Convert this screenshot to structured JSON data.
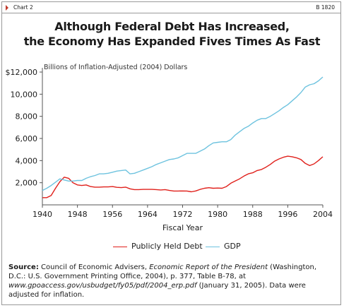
{
  "header": {
    "chart_label": "Chart 2",
    "chart_id": "B 1820"
  },
  "chart_data": {
    "type": "line",
    "title_line1": "Although Federal Debt Has Increased,",
    "title_line2": "the Economy Has Expanded Fives Times As Fast",
    "subtitle": "Billions of Inflation-Adjusted (2004) Dollars",
    "xlabel": "Fiscal Year",
    "ylabel": "",
    "xlim": [
      1940,
      2004
    ],
    "ylim": [
      0,
      12000
    ],
    "x_ticks": [
      "1940",
      "1948",
      "1956",
      "1964",
      "1972",
      "1980",
      "1988",
      "1996",
      "2004"
    ],
    "y_ticks": [
      "$12,000",
      "10,000",
      "8,000",
      "6,000",
      "4,000",
      "2,000"
    ],
    "y_tick_values": [
      12000,
      10000,
      8000,
      6000,
      4000,
      2000
    ],
    "x": [
      1940,
      1941,
      1942,
      1943,
      1944,
      1945,
      1946,
      1947,
      1948,
      1949,
      1950,
      1951,
      1952,
      1953,
      1954,
      1955,
      1956,
      1957,
      1958,
      1959,
      1960,
      1961,
      1962,
      1963,
      1964,
      1965,
      1966,
      1967,
      1968,
      1969,
      1970,
      1971,
      1972,
      1973,
      1974,
      1975,
      1976,
      1977,
      1978,
      1979,
      1980,
      1981,
      1982,
      1983,
      1984,
      1985,
      1986,
      1987,
      1988,
      1989,
      1990,
      1991,
      1992,
      1993,
      1994,
      1995,
      1996,
      1997,
      1998,
      1999,
      2000,
      2001,
      2002,
      2003,
      2004
    ],
    "series": [
      {
        "name": "Publicly Held Debt",
        "color": "#e0201b",
        "values": [
          650,
          650,
          850,
          1500,
          2100,
          2500,
          2400,
          2000,
          1800,
          1750,
          1800,
          1650,
          1600,
          1600,
          1620,
          1620,
          1650,
          1580,
          1560,
          1600,
          1450,
          1380,
          1380,
          1400,
          1400,
          1400,
          1380,
          1350,
          1380,
          1300,
          1250,
          1250,
          1260,
          1250,
          1180,
          1260,
          1400,
          1500,
          1550,
          1500,
          1520,
          1500,
          1650,
          1950,
          2150,
          2350,
          2600,
          2800,
          2900,
          3100,
          3200,
          3400,
          3650,
          3950,
          4150,
          4300,
          4400,
          4350,
          4250,
          4100,
          3750,
          3550,
          3700,
          4000,
          4350
        ]
      },
      {
        "name": "GDP",
        "color": "#6ec3df",
        "values": [
          1300,
          1500,
          1750,
          2050,
          2350,
          2250,
          2150,
          2150,
          2200,
          2200,
          2400,
          2550,
          2650,
          2800,
          2800,
          2850,
          2950,
          3050,
          3100,
          3150,
          2800,
          2850,
          3000,
          3150,
          3300,
          3450,
          3650,
          3800,
          3950,
          4100,
          4150,
          4250,
          4450,
          4650,
          4650,
          4650,
          4850,
          5050,
          5350,
          5600,
          5650,
          5700,
          5700,
          5900,
          6300,
          6600,
          6900,
          7100,
          7400,
          7650,
          7800,
          7800,
          8000,
          8250,
          8500,
          8800,
          9050,
          9400,
          9750,
          10150,
          10650,
          10850,
          10950,
          11200,
          11550
        ]
      }
    ]
  },
  "legend": [
    {
      "label": "Publicly Held Debt",
      "color": "#e0201b"
    },
    {
      "label": "GDP",
      "color": "#6ec3df"
    }
  ],
  "source": {
    "label": "Source:",
    "part1": " Council of Economic Advisers, ",
    "publication": "Economic Report of the President",
    "part2": " (Washington, D.C.: U.S. Government Printing Office, 2004), p. 377, Table B-78, at ",
    "url": "www.gpoaccess.gov/usbudget/fy05/pdf/2004_erp.pdf",
    "part3": " (January 31, 2005). Data were adjusted for inflation."
  }
}
